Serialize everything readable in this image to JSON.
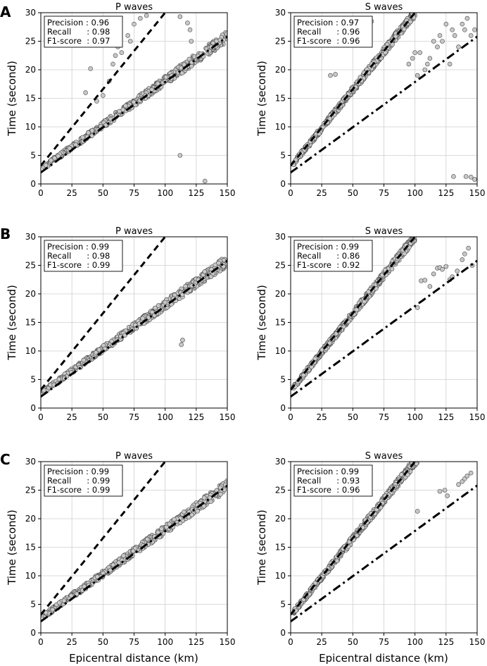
{
  "figure": {
    "xlabel": "Epicentral distance (km)",
    "ylabel": "Time (second)"
  },
  "chart_data": [
    {
      "type": "scatter",
      "row": "A",
      "title": "P waves",
      "metrics": [
        "Precision : 0.96",
        "Recall      : 0.98",
        "F1-score  : 0.97"
      ],
      "xlim": [
        0,
        150
      ],
      "ylim": [
        0,
        30
      ],
      "xticks": [
        0,
        25,
        50,
        75,
        100,
        125,
        150
      ],
      "yticks": [
        0,
        5,
        10,
        15,
        20,
        25,
        30
      ],
      "reference_lines": [
        {
          "style": "dashed",
          "x": [
            0,
            100
          ],
          "y": [
            3.2,
            30
          ]
        },
        {
          "style": "dash-dot",
          "x": [
            0,
            150
          ],
          "y": [
            2.0,
            25.8
          ]
        }
      ],
      "cluster": {
        "slope": 0.155,
        "intercept": 2.6,
        "xmin": 2,
        "xmax": 150
      },
      "outliers": [
        [
          40,
          20.2
        ],
        [
          36,
          16
        ],
        [
          45,
          14.5
        ],
        [
          50,
          15.5
        ],
        [
          55,
          18
        ],
        [
          58,
          21
        ],
        [
          60,
          22.5
        ],
        [
          62,
          24
        ],
        [
          65,
          23
        ],
        [
          70,
          26
        ],
        [
          75,
          28
        ],
        [
          80,
          29
        ],
        [
          85,
          29.5
        ],
        [
          72,
          25
        ],
        [
          112,
          5
        ],
        [
          132,
          0.5
        ],
        [
          112,
          29.3
        ],
        [
          118,
          28.2
        ],
        [
          120,
          27
        ],
        [
          121,
          25
        ]
      ]
    },
    {
      "type": "scatter",
      "row": "A",
      "title": "S waves",
      "metrics": [
        "Precision : 0.97",
        "Recall      : 0.96",
        "F1-score  : 0.96"
      ],
      "xlim": [
        0,
        150
      ],
      "ylim": [
        0,
        30
      ],
      "xticks": [
        0,
        25,
        50,
        75,
        100,
        125,
        150
      ],
      "yticks": [
        0,
        5,
        10,
        15,
        20,
        25,
        30
      ],
      "reference_lines": [
        {
          "style": "dashed",
          "x": [
            0,
            100
          ],
          "y": [
            3.2,
            30
          ]
        },
        {
          "style": "dash-dot",
          "x": [
            0,
            150
          ],
          "y": [
            2.0,
            25.8
          ]
        }
      ],
      "cluster": {
        "slope": 0.27,
        "intercept": 3.0,
        "xmin": 2,
        "xmax": 100
      },
      "outliers": [
        [
          32,
          19
        ],
        [
          36,
          19.2
        ],
        [
          60,
          27
        ],
        [
          65,
          28.5
        ],
        [
          95,
          21
        ],
        [
          98,
          22
        ],
        [
          100,
          23
        ],
        [
          102,
          19
        ],
        [
          104,
          23
        ],
        [
          108,
          20
        ],
        [
          110,
          21
        ],
        [
          112,
          22
        ],
        [
          115,
          25
        ],
        [
          118,
          24
        ],
        [
          120,
          26
        ],
        [
          122,
          25
        ],
        [
          125,
          28
        ],
        [
          128,
          21
        ],
        [
          130,
          27
        ],
        [
          132,
          26
        ],
        [
          135,
          24
        ],
        [
          138,
          28
        ],
        [
          140,
          27
        ],
        [
          142,
          29
        ],
        [
          145,
          26
        ],
        [
          148,
          27
        ],
        [
          141,
          1.3
        ],
        [
          145,
          1.2
        ],
        [
          148,
          0.8
        ],
        [
          131,
          1.3
        ]
      ]
    },
    {
      "type": "scatter",
      "row": "B",
      "title": "P waves",
      "metrics": [
        "Precision : 0.99",
        "Recall      : 0.98",
        "F1-score  : 0.99"
      ],
      "xlim": [
        0,
        150
      ],
      "ylim": [
        0,
        30
      ],
      "xticks": [
        0,
        25,
        50,
        75,
        100,
        125,
        150
      ],
      "yticks": [
        0,
        5,
        10,
        15,
        20,
        25,
        30
      ],
      "reference_lines": [
        {
          "style": "dashed",
          "x": [
            0,
            100
          ],
          "y": [
            3.2,
            30
          ]
        },
        {
          "style": "dash-dot",
          "x": [
            0,
            150
          ],
          "y": [
            2.0,
            25.8
          ]
        }
      ],
      "cluster": {
        "slope": 0.155,
        "intercept": 2.6,
        "xmin": 2,
        "xmax": 150
      },
      "outliers": [
        [
          114,
          11.9
        ],
        [
          113,
          11.1
        ]
      ]
    },
    {
      "type": "scatter",
      "row": "B",
      "title": "S waves",
      "metrics": [
        "Precision : 0.99",
        "Recall      : 0.86",
        "F1-score  : 0.92"
      ],
      "xlim": [
        0,
        150
      ],
      "ylim": [
        0,
        30
      ],
      "xticks": [
        0,
        25,
        50,
        75,
        100,
        125,
        150
      ],
      "yticks": [
        0,
        5,
        10,
        15,
        20,
        25,
        30
      ],
      "reference_lines": [
        {
          "style": "dashed",
          "x": [
            0,
            100
          ],
          "y": [
            3.2,
            30
          ]
        },
        {
          "style": "dash-dot",
          "x": [
            0,
            150
          ],
          "y": [
            2.0,
            25.8
          ]
        }
      ],
      "cluster": {
        "slope": 0.27,
        "intercept": 3.0,
        "xmin": 2,
        "xmax": 100
      },
      "outliers": [
        [
          102,
          17.6
        ],
        [
          105,
          22.3
        ],
        [
          108,
          22.4
        ],
        [
          112,
          21.3
        ],
        [
          115,
          23.5
        ],
        [
          118,
          24.5
        ],
        [
          120,
          24.6
        ],
        [
          122,
          24.3
        ],
        [
          125,
          24.8
        ],
        [
          128,
          22.5
        ],
        [
          130,
          23
        ],
        [
          134,
          24
        ],
        [
          138,
          26
        ],
        [
          140,
          27
        ],
        [
          143,
          28
        ],
        [
          146,
          25
        ]
      ]
    },
    {
      "type": "scatter",
      "row": "C",
      "title": "P waves",
      "metrics": [
        "Precision : 0.99",
        "Recall      : 0.99",
        "F1-score  : 0.99"
      ],
      "xlim": [
        0,
        150
      ],
      "ylim": [
        0,
        30
      ],
      "xticks": [
        0,
        25,
        50,
        75,
        100,
        125,
        150
      ],
      "yticks": [
        0,
        5,
        10,
        15,
        20,
        25,
        30
      ],
      "reference_lines": [
        {
          "style": "dashed",
          "x": [
            0,
            100
          ],
          "y": [
            3.2,
            30
          ]
        },
        {
          "style": "dash-dot",
          "x": [
            0,
            150
          ],
          "y": [
            2.0,
            25.8
          ]
        }
      ],
      "cluster": {
        "slope": 0.155,
        "intercept": 2.6,
        "xmin": 2,
        "xmax": 150
      },
      "outliers": []
    },
    {
      "type": "scatter",
      "row": "C",
      "title": "S waves",
      "metrics": [
        "Precision : 0.99",
        "Recall      : 0.93",
        "F1-score  : 0.96"
      ],
      "xlim": [
        0,
        150
      ],
      "ylim": [
        0,
        30
      ],
      "xticks": [
        0,
        25,
        50,
        75,
        100,
        125,
        150
      ],
      "yticks": [
        0,
        5,
        10,
        15,
        20,
        25,
        30
      ],
      "reference_lines": [
        {
          "style": "dashed",
          "x": [
            0,
            100
          ],
          "y": [
            3.2,
            30
          ]
        },
        {
          "style": "dash-dot",
          "x": [
            0,
            150
          ],
          "y": [
            2.0,
            25.8
          ]
        }
      ],
      "cluster": {
        "slope": 0.27,
        "intercept": 3.0,
        "xmin": 2,
        "xmax": 102
      },
      "outliers": [
        [
          102,
          21.3
        ],
        [
          120,
          24.8
        ],
        [
          124,
          25
        ],
        [
          126,
          24
        ],
        [
          135,
          26
        ],
        [
          138,
          26.5
        ],
        [
          140,
          27
        ],
        [
          142,
          27.5
        ],
        [
          145,
          28
        ]
      ]
    }
  ]
}
